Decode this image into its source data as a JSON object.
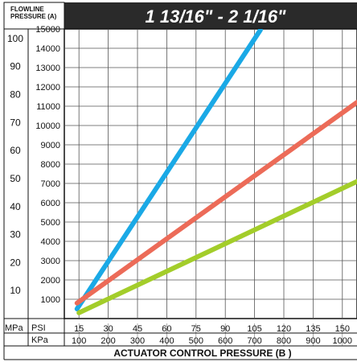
{
  "chart_data": {
    "type": "line",
    "title": "1 13/16\" - 2 1/16\"",
    "ylabel_line1": "FLOWLINE",
    "ylabel_line2": "PRESSURE  (A)",
    "y_psi_ticks": [
      1000,
      2000,
      3000,
      4000,
      5000,
      6000,
      7000,
      8000,
      9000,
      10000,
      11000,
      12000,
      13000,
      14000,
      15000
    ],
    "y_mpa_ticks": [
      10,
      20,
      30,
      40,
      50,
      60,
      70,
      80,
      90,
      100
    ],
    "ylim_psi": [
      0,
      15000
    ],
    "x_psi_ticks": [
      15,
      30,
      45,
      60,
      75,
      90,
      105,
      120,
      135,
      150
    ],
    "x_kpa_ticks": [
      100,
      200,
      300,
      400,
      500,
      600,
      700,
      800,
      900,
      1000
    ],
    "xlim_psi": [
      7.5,
      157.5
    ],
    "xlabel": "ACTUATOR CONTROL PRESSURE  (B )",
    "row_labels": {
      "mpa": "MPa",
      "psi": "PSI",
      "kpa": "KPa"
    },
    "grid": true,
    "series": [
      {
        "color": "#1aa9e6",
        "x": [
          14,
          108
        ],
        "y": [
          500,
          14950
        ]
      },
      {
        "color": "#ec6b58",
        "x": [
          14,
          157.5
        ],
        "y": [
          800,
          11200
        ]
      },
      {
        "color": "#a3cd2a",
        "x": [
          15,
          157.5
        ],
        "y": [
          300,
          7100
        ]
      }
    ]
  }
}
